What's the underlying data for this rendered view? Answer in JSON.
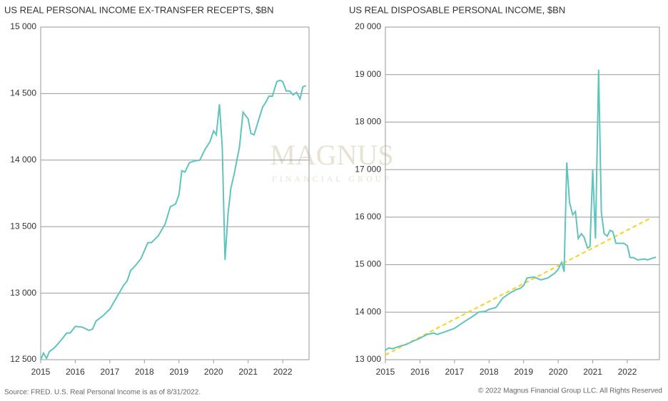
{
  "chart_data": [
    {
      "type": "line",
      "title": "US REAL PERSONAL INCOME EX-TRANSFER RECEPTS, $BN",
      "color": "#5fc4bd",
      "x": [
        2015.0,
        2015.08,
        2015.17,
        2015.25,
        2015.4,
        2015.6,
        2015.75,
        2015.85,
        2016.0,
        2016.2,
        2016.4,
        2016.5,
        2016.6,
        2016.8,
        2017.0,
        2017.2,
        2017.4,
        2017.5,
        2017.6,
        2017.75,
        2017.9,
        2018.0,
        2018.1,
        2018.2,
        2018.4,
        2018.6,
        2018.75,
        2018.9,
        2019.0,
        2019.08,
        2019.17,
        2019.3,
        2019.4,
        2019.5,
        2019.6,
        2019.75,
        2019.9,
        2020.0,
        2020.08,
        2020.17,
        2020.25,
        2020.33,
        2020.42,
        2020.5,
        2020.6,
        2020.75,
        2020.85,
        2021.0,
        2021.08,
        2021.17,
        2021.3,
        2021.42,
        2021.5,
        2021.6,
        2021.7,
        2021.83,
        2021.92,
        2022.0,
        2022.1,
        2022.2,
        2022.3,
        2022.4,
        2022.5,
        2022.58,
        2022.67
      ],
      "values": [
        12500,
        12550,
        12510,
        12560,
        12590,
        12650,
        12700,
        12700,
        12750,
        12745,
        12720,
        12730,
        12790,
        12830,
        12880,
        12970,
        13060,
        13090,
        13170,
        13210,
        13260,
        13320,
        13380,
        13380,
        13430,
        13520,
        13650,
        13670,
        13740,
        13920,
        13910,
        13980,
        13990,
        13995,
        14000,
        14080,
        14140,
        14220,
        14190,
        14420,
        14100,
        13250,
        13600,
        13790,
        13900,
        14100,
        14360,
        14310,
        14200,
        14190,
        14300,
        14400,
        14430,
        14480,
        14480,
        14590,
        14600,
        14590,
        14520,
        14520,
        14490,
        14510,
        14460,
        14550,
        14560
      ],
      "xlim": [
        2015,
        2022.76
      ],
      "xticks": [
        2015,
        2016,
        2017,
        2018,
        2019,
        2020,
        2021,
        2022
      ],
      "ylim": [
        12500,
        15000
      ],
      "yticks": [
        {
          "value": 12500,
          "label": "12 500"
        },
        {
          "value": 13000,
          "label": "13 000"
        },
        {
          "value": 13500,
          "label": "13 500"
        },
        {
          "value": 14000,
          "label": "14 000"
        },
        {
          "value": 14500,
          "label": "14 500"
        },
        {
          "value": 15000,
          "label": "15 000"
        }
      ],
      "grid": true
    },
    {
      "type": "line",
      "title": "US REAL DISPOSABLE PERSONAL INCOME, $BN",
      "color": "#5fc4bd",
      "x": [
        2015.0,
        2015.1,
        2015.2,
        2015.4,
        2015.6,
        2015.8,
        2016.0,
        2016.2,
        2016.4,
        2016.5,
        2016.7,
        2017.0,
        2017.2,
        2017.5,
        2017.7,
        2017.9,
        2018.0,
        2018.2,
        2018.4,
        2018.6,
        2018.8,
        2018.9,
        2019.0,
        2019.1,
        2019.3,
        2019.5,
        2019.7,
        2019.9,
        2020.0,
        2020.1,
        2020.17,
        2020.25,
        2020.33,
        2020.42,
        2020.5,
        2020.58,
        2020.67,
        2020.75,
        2020.85,
        2020.92,
        2021.0,
        2021.08,
        2021.17,
        2021.25,
        2021.33,
        2021.42,
        2021.5,
        2021.58,
        2021.67,
        2021.9,
        2022.0,
        2022.08,
        2022.17,
        2022.3,
        2022.5,
        2022.58,
        2022.7,
        2022.83
      ],
      "values": [
        13200,
        13250,
        13230,
        13280,
        13320,
        13390,
        13450,
        13530,
        13560,
        13530,
        13580,
        13660,
        13760,
        13900,
        14000,
        14020,
        14060,
        14100,
        14300,
        14400,
        14480,
        14500,
        14560,
        14720,
        14740,
        14680,
        14720,
        14820,
        14900,
        15050,
        14850,
        17150,
        16300,
        16050,
        16120,
        15550,
        15650,
        15580,
        15350,
        15380,
        17000,
        15550,
        19100,
        16100,
        15650,
        15600,
        15720,
        15700,
        15450,
        15450,
        15400,
        15150,
        15150,
        15100,
        15120,
        15100,
        15130,
        15160
      ],
      "trend": {
        "x": [
          2015,
          2022.65
        ],
        "values": [
          13100,
          15970
        ],
        "color": "#f5d31c"
      },
      "xlim": [
        2015,
        2022.93
      ],
      "xticks": [
        2015,
        2016,
        2017,
        2018,
        2019,
        2020,
        2021,
        2022
      ],
      "ylim": [
        13000,
        20000
      ],
      "yticks": [
        {
          "value": 13000,
          "label": "13 000"
        },
        {
          "value": 14000,
          "label": "14 000"
        },
        {
          "value": 15000,
          "label": "15 000"
        },
        {
          "value": 16000,
          "label": "16 000"
        },
        {
          "value": 17000,
          "label": "17 000"
        },
        {
          "value": 18000,
          "label": "18 000"
        },
        {
          "value": 19000,
          "label": "19 000"
        },
        {
          "value": 20000,
          "label": "20 000"
        }
      ],
      "grid": true
    }
  ],
  "watermark": "MAGNUS",
  "watermark_sub": "FINANCIAL GROUP",
  "source": "Source: FRED. U.S. Real Personal Income is as of 8/31/2022.",
  "copyright": "© 2022 Magnus Financial Group LLC. All Rights Reserved"
}
